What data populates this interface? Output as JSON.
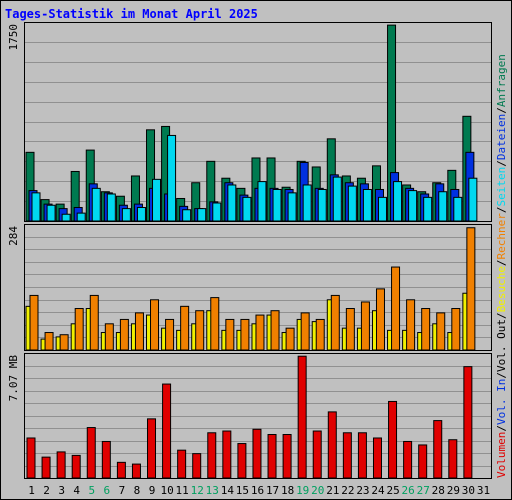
{
  "chart_data": {
    "type": "bar",
    "title": "Tages-Statistik im Monat April 2025",
    "categories": [
      "1",
      "2",
      "3",
      "4",
      "5",
      "6",
      "7",
      "8",
      "9",
      "10",
      "11",
      "12",
      "13",
      "14",
      "15",
      "16",
      "17",
      "18",
      "19",
      "20",
      "21",
      "22",
      "23",
      "24",
      "25",
      "26",
      "27",
      "28",
      "29",
      "30",
      "31"
    ],
    "weekend_days": [
      "5",
      "6",
      "12",
      "13",
      "19",
      "20",
      "26",
      "27"
    ],
    "panels": [
      {
        "scale_label": "1750",
        "ymax": 1750,
        "series": [
          {
            "name": "Anfragen",
            "color": "#007a50",
            "values": [
              610,
              190,
              150,
              440,
              630,
              260,
              220,
              400,
              810,
              840,
              200,
              340,
              530,
              380,
              290,
              560,
              560,
              300,
              530,
              480,
              730,
              400,
              380,
              490,
              1740,
              320,
              260,
              340,
              450,
              930,
              0
            ]
          },
          {
            "name": "Dateien",
            "color": "#0030e0",
            "values": [
              270,
              150,
              110,
              120,
              330,
              250,
              140,
              150,
              290,
              240,
              130,
              110,
              170,
              340,
              230,
              290,
              290,
              280,
              520,
              290,
              410,
              340,
              330,
              280,
              430,
              290,
              240,
              330,
              280,
              610,
              0
            ]
          },
          {
            "name": "Seiten",
            "color": "#00d8f0",
            "values": [
              250,
              140,
              60,
              70,
              290,
              240,
              110,
              120,
              370,
              760,
              100,
              110,
              160,
              320,
              210,
              350,
              280,
              250,
              320,
              280,
              390,
              310,
              280,
              210,
              350,
              270,
              210,
              260,
              210,
              380,
              0
            ]
          }
        ]
      },
      {
        "scale_label": "284",
        "ymax": 284,
        "series": [
          {
            "name": "Besuche",
            "color": "#f0f000",
            "values": [
              100,
              25,
              30,
              60,
              95,
              40,
              40,
              60,
              80,
              50,
              45,
              60,
              90,
              45,
              45,
              60,
              80,
              40,
              70,
              65,
              115,
              50,
              50,
              90,
              45,
              45,
              40,
              60,
              40,
              130,
              0
            ]
          },
          {
            "name": "Rechner",
            "color": "#f08000",
            "values": [
              125,
              40,
              35,
              95,
              125,
              60,
              70,
              85,
              115,
              70,
              100,
              90,
              120,
              70,
              70,
              80,
              90,
              50,
              85,
              70,
              125,
              95,
              110,
              140,
              190,
              115,
              95,
              85,
              95,
              280,
              0
            ]
          }
        ]
      },
      {
        "scale_label": "7.07 MB",
        "ymax": 7.07,
        "series": [
          {
            "name": "Volumen",
            "color": "#e00000",
            "values": [
              2.3,
              1.2,
              1.5,
              1.3,
              2.9,
              2.1,
              0.9,
              0.8,
              3.4,
              5.4,
              1.6,
              1.4,
              2.6,
              2.7,
              1.98,
              2.8,
              2.5,
              2.5,
              7.0,
              2.7,
              3.8,
              2.6,
              2.6,
              2.3,
              4.4,
              2.1,
              1.9,
              3.3,
              2.2,
              6.4,
              0
            ]
          }
        ]
      }
    ],
    "side_labels": [
      {
        "text": "Volumen",
        "color": "#e00000"
      },
      {
        "text": "/",
        "color": "#000000"
      },
      {
        "text": "Vol. In",
        "color": "#0030e0"
      },
      {
        "text": "/",
        "color": "#000000"
      },
      {
        "text": "Vol. Out",
        "color": "#000000"
      },
      {
        "text": "/",
        "color": "#000000"
      },
      {
        "text": "Besuche",
        "color": "#f0f000"
      },
      {
        "text": "/",
        "color": "#000000"
      },
      {
        "text": "Rechner",
        "color": "#f08000"
      },
      {
        "text": "/",
        "color": "#000000"
      },
      {
        "text": "Seiten",
        "color": "#00d8f0"
      },
      {
        "text": "/",
        "color": "#000000"
      },
      {
        "text": "Dateien",
        "color": "#0030e0"
      },
      {
        "text": "/",
        "color": "#000000"
      },
      {
        "text": "Anfragen",
        "color": "#007a50"
      }
    ],
    "colors": {
      "background": "#c0c0c0",
      "title": "#0000ff",
      "gridline": "#909090",
      "weekday_label": "#000000",
      "weekend_label": "#00a060"
    }
  }
}
